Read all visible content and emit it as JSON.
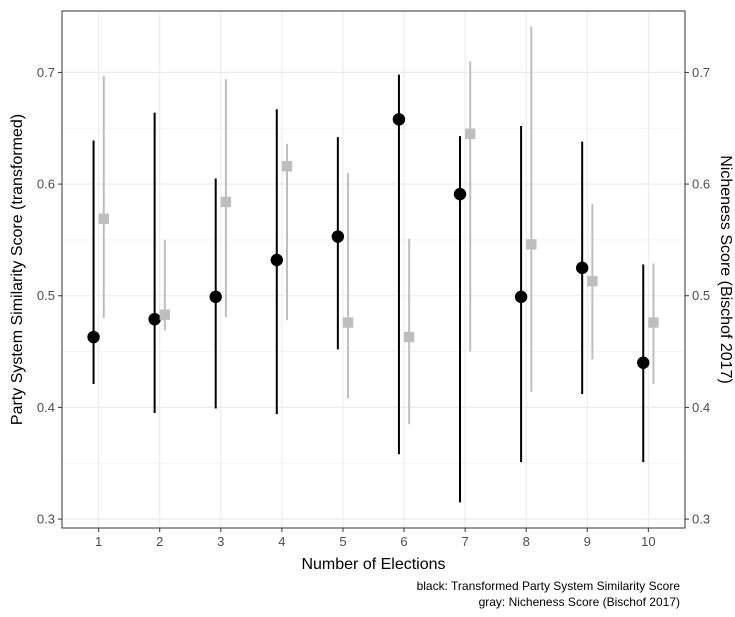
{
  "chart_data": {
    "type": "scatter",
    "title": "",
    "xlabel": "Number of Elections",
    "ylabel": "Party System Similarity Score (transformed)",
    "ylabel_right": "Nicheness Score (Bischof 2017)",
    "x_categories": [
      "1",
      "2",
      "3",
      "4",
      "5",
      "6",
      "7",
      "8",
      "9",
      "10"
    ],
    "ylim": [
      0.292,
      0.755
    ],
    "y_ticks": [
      0.3,
      0.4,
      0.5,
      0.6,
      0.7
    ],
    "y_tick_labels": [
      "0.3",
      "0.4",
      "0.5",
      "0.6",
      "0.7"
    ],
    "grid": true,
    "series": [
      {
        "color": "#000000",
        "marker": "circle",
        "points": [
          {
            "x": 1,
            "y": 0.463,
            "low": 0.421,
            "high": 0.639
          },
          {
            "x": 2,
            "y": 0.479,
            "low": 0.395,
            "high": 0.664
          },
          {
            "x": 3,
            "y": 0.499,
            "low": 0.399,
            "high": 0.605
          },
          {
            "x": 4,
            "y": 0.532,
            "low": 0.394,
            "high": 0.667
          },
          {
            "x": 5,
            "y": 0.553,
            "low": 0.452,
            "high": 0.642
          },
          {
            "x": 6,
            "y": 0.658,
            "low": 0.358,
            "high": 0.698
          },
          {
            "x": 7,
            "y": 0.591,
            "low": 0.315,
            "high": 0.643
          },
          {
            "x": 8,
            "y": 0.499,
            "low": 0.351,
            "high": 0.652
          },
          {
            "x": 9,
            "y": 0.525,
            "low": 0.412,
            "high": 0.638
          },
          {
            "x": 10,
            "y": 0.44,
            "low": 0.351,
            "high": 0.528
          }
        ]
      },
      {
        "color": "#bebebe",
        "marker": "square",
        "points": [
          {
            "x": 1,
            "y": 0.569,
            "low": 0.48,
            "high": 0.697
          },
          {
            "x": 2,
            "y": 0.483,
            "low": 0.469,
            "high": 0.55
          },
          {
            "x": 3,
            "y": 0.584,
            "low": 0.481,
            "high": 0.694
          },
          {
            "x": 4,
            "y": 0.616,
            "low": 0.478,
            "high": 0.636
          },
          {
            "x": 5,
            "y": 0.476,
            "low": 0.408,
            "high": 0.61
          },
          {
            "x": 6,
            "y": 0.463,
            "low": 0.385,
            "high": 0.551
          },
          {
            "x": 7,
            "y": 0.645,
            "low": 0.45,
            "high": 0.71
          },
          {
            "x": 8,
            "y": 0.546,
            "low": 0.414,
            "high": 0.741
          },
          {
            "x": 9,
            "y": 0.513,
            "low": 0.443,
            "high": 0.582
          },
          {
            "x": 10,
            "y": 0.476,
            "low": 0.421,
            "high": 0.529
          }
        ]
      }
    ],
    "caption_lines": [
      "black: Transformed Party System Similarity Score",
      "gray: Nicheness Score (Bischof 2017)"
    ]
  }
}
